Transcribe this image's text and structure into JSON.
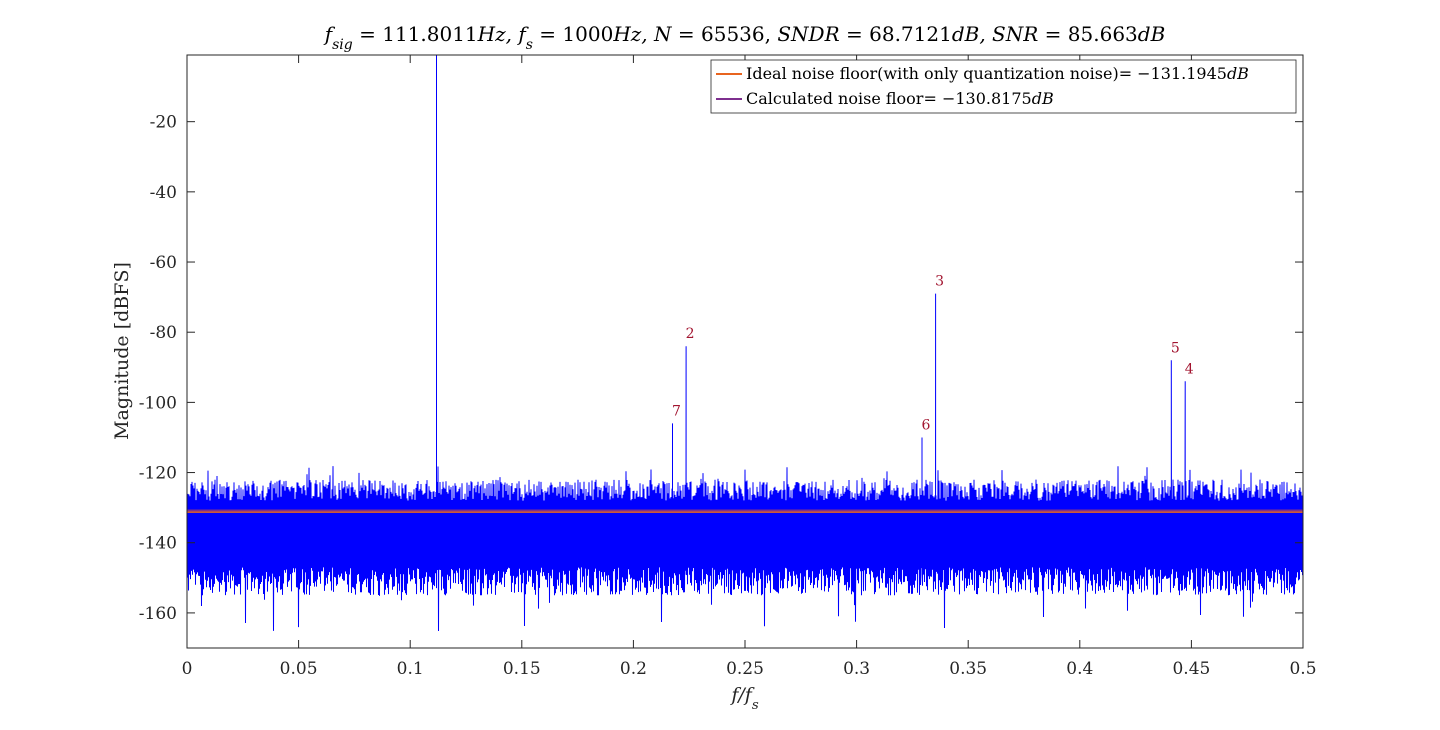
{
  "chart_data": {
    "type": "line",
    "title": "f_sig = 111.8011Hz, f_s = 1000Hz, N = 65536, SNDR = 68.7121dB, SNR = 85.663dB",
    "title_parts": [
      {
        "text": "f",
        "italic": true
      },
      {
        "text": "sig",
        "sub": true,
        "italic": true
      },
      {
        "text": " = 111.8011",
        "italic": false
      },
      {
        "text": "Hz, f",
        "italic": true
      },
      {
        "text": "s",
        "sub": true,
        "italic": true
      },
      {
        "text": " = 1000",
        "italic": false
      },
      {
        "text": "Hz, N",
        "italic": true
      },
      {
        "text": " = 65536, ",
        "italic": false
      },
      {
        "text": "SNDR",
        "italic": true
      },
      {
        "text": " = 68.7121",
        "italic": false
      },
      {
        "text": "dB, SNR",
        "italic": true
      },
      {
        "text": " = 85.663",
        "italic": false
      },
      {
        "text": "dB",
        "italic": true
      }
    ],
    "xlabel_parts": [
      {
        "text": "f/f",
        "italic": true
      },
      {
        "text": "s",
        "sub": true,
        "italic": true
      }
    ],
    "ylabel": "Magnitude [dBFS]",
    "xlim": [
      0,
      0.5
    ],
    "ylim": [
      -170,
      -1
    ],
    "xticks": [
      0,
      0.05,
      0.1,
      0.15,
      0.2,
      0.25,
      0.3,
      0.35,
      0.4,
      0.45,
      0.5
    ],
    "xtick_labels": [
      "0",
      "0.05",
      "0.1",
      "0.15",
      "0.2",
      "0.25",
      "0.3",
      "0.35",
      "0.4",
      "0.45",
      "0.5"
    ],
    "yticks": [
      -20,
      -40,
      -60,
      -80,
      -100,
      -120,
      -140,
      -160
    ],
    "ytick_labels": [
      "-20",
      "-40",
      "-60",
      "-80",
      "-100",
      "-120",
      "-140",
      "-160"
    ],
    "grid": false,
    "legend_position": "top-right",
    "series": [
      {
        "name": "spectrum",
        "color": "#0000ff",
        "noise_floor_range": [
          -155,
          -122
        ],
        "fundamental": {
          "x": 0.1118,
          "y": 0
        },
        "spurs": [
          {
            "x": 0.2236,
            "y": -84
          },
          {
            "x": 0.3354,
            "y": -69
          },
          {
            "x": 0.4472,
            "y": -94
          },
          {
            "x": 0.441,
            "y": -88
          },
          {
            "x": 0.3293,
            "y": -110
          },
          {
            "x": 0.2175,
            "y": -106
          }
        ]
      },
      {
        "name": "Ideal noise floor(with only quantization noise)",
        "value_text": "= −131.1945",
        "unit_text": "dB",
        "color": "#e8641f",
        "y": -131.1945
      },
      {
        "name": "Calculated noise floor",
        "value_text": "= −130.8175",
        "unit_text": "dB",
        "color": "#7e2f8e",
        "y": -130.8175
      }
    ],
    "annotations": [
      {
        "text": "2",
        "x": 0.2236,
        "y": -84,
        "color": "#a2142f"
      },
      {
        "text": "3",
        "x": 0.3354,
        "y": -69,
        "color": "#a2142f"
      },
      {
        "text": "4",
        "x": 0.4472,
        "y": -94,
        "color": "#a2142f"
      },
      {
        "text": "5",
        "x": 0.441,
        "y": -88,
        "color": "#a2142f"
      },
      {
        "text": "6",
        "x": 0.3293,
        "y": -110,
        "color": "#a2142f"
      },
      {
        "text": "7",
        "x": 0.2175,
        "y": -106,
        "color": "#a2142f"
      }
    ]
  }
}
